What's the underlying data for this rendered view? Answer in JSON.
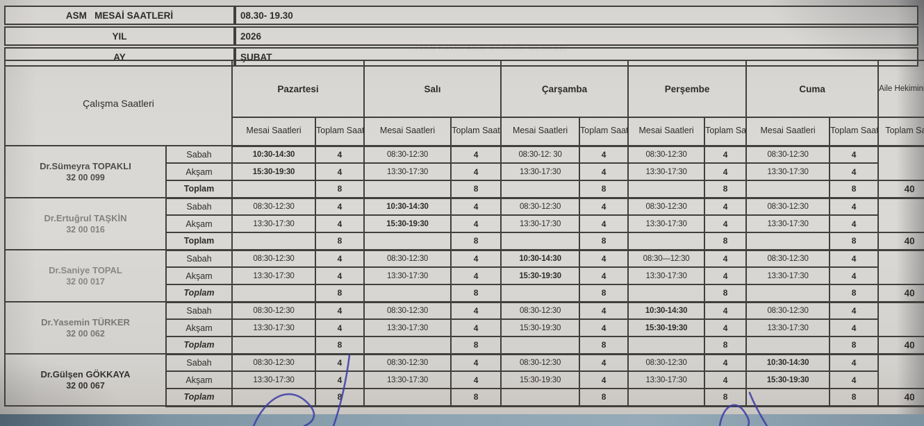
{
  "meta": {
    "rows": [
      {
        "label": "ASM   MESAİ SAATLERİ",
        "value": "08.30- 19.30"
      },
      {
        "label": "YIL",
        "value": "2026"
      },
      {
        "label": "AY",
        "value": "ŞUBAT"
      }
    ]
  },
  "schedule": {
    "corner_header": "Çalışma Saatleri",
    "days": [
      "Pazartesi",
      "Salı",
      "Çarşamba",
      "Perşembe",
      "Cuma"
    ],
    "mesai_header": "Mesai Saatleri",
    "toplam_header": "Toplam Saat",
    "family_col_header": "Aile Hekiminin Çalışma Saatleri",
    "family_col_subheader": "Toplam Saat",
    "period_labels": [
      "Sabah",
      "Akşam",
      "Toplam"
    ],
    "ghost_text": "İYAN FATİH AİLE SAĞLIĞI MERKEZİ",
    "doctors": [
      {
        "name": "Dr.Sümeyra TOPAKLI",
        "code": "32 00 099",
        "week_total": "40",
        "days": [
          {
            "sabah": "10:30-14:30",
            "sabah_em": true,
            "sabah_h": "4",
            "aksam": "15:30-19:30",
            "aksam_em": true,
            "aksam_h": "4",
            "toplam": "8"
          },
          {
            "sabah": "08:30-12:30",
            "sabah_h": "4",
            "aksam": "13:30-17:30",
            "aksam_h": "4",
            "toplam": "8"
          },
          {
            "sabah": "08:30-12: 30",
            "sabah_h": "4",
            "aksam": "13:30-17:30",
            "aksam_h": "4",
            "toplam": "8"
          },
          {
            "sabah": "08:30-12:30",
            "sabah_h": "4",
            "aksam": "13:30-17:30",
            "aksam_h": "4",
            "toplam": "8"
          },
          {
            "sabah": "08:30-12:30",
            "sabah_h": "4",
            "aksam": "13:30-17:30",
            "aksam_h": "4",
            "toplam": "8"
          }
        ]
      },
      {
        "name": "Dr.Ertuğrul TAŞKİN",
        "code": "32 00 016",
        "week_total": "40",
        "days": [
          {
            "sabah": "08:30-12:30",
            "sabah_h": "4",
            "aksam": "13:30-17:30",
            "aksam_h": "4",
            "toplam": "8"
          },
          {
            "sabah": "10:30-14:30",
            "sabah_em": true,
            "sabah_h": "4",
            "aksam": "15:30-19:30",
            "aksam_em": true,
            "aksam_h": "4",
            "toplam": "8"
          },
          {
            "sabah": "08:30-12:30",
            "sabah_h": "4",
            "aksam": "13:30-17:30",
            "aksam_h": "4",
            "toplam": "8"
          },
          {
            "sabah": "08:30-12:30",
            "sabah_h": "4",
            "aksam": "13:30-17:30",
            "aksam_h": "4",
            "toplam": "8"
          },
          {
            "sabah": "08:30-12:30",
            "sabah_h": "4",
            "aksam": "13:30-17:30",
            "aksam_h": "4",
            "toplam": "8"
          }
        ]
      },
      {
        "name": "Dr.Saniye TOPAL",
        "code": "32 00 017",
        "week_total": "40",
        "days": [
          {
            "sabah": "08:30-12:30",
            "sabah_h": "4",
            "aksam": "13:30-17:30",
            "aksam_h": "4",
            "toplam": "8"
          },
          {
            "sabah": "08:30-12:30",
            "sabah_h": "4",
            "aksam": "13:30-17:30",
            "aksam_h": "4",
            "toplam": "8"
          },
          {
            "sabah": "10:30-14:30",
            "sabah_em": true,
            "sabah_h": "4",
            "aksam": "15:30-19:30",
            "aksam_em": true,
            "aksam_h": "4",
            "toplam": "8"
          },
          {
            "sabah": "08:30—12:30",
            "sabah_h": "4",
            "aksam": "13:30-17:30",
            "aksam_h": "4",
            "toplam": "8"
          },
          {
            "sabah": "08:30-12:30",
            "sabah_h": "4",
            "aksam": "13:30-17:30",
            "aksam_h": "4",
            "toplam": "8"
          }
        ]
      },
      {
        "name": "Dr.Yasemin TÜRKER",
        "code": "32 00 062",
        "week_total": "40",
        "days": [
          {
            "sabah": "08:30-12:30",
            "sabah_h": "4",
            "aksam": "13:30-17:30",
            "aksam_h": "4",
            "toplam": "8"
          },
          {
            "sabah": "08:30-12:30",
            "sabah_h": "4",
            "aksam": "13:30-17:30",
            "aksam_h": "4",
            "toplam": "8"
          },
          {
            "sabah": "08:30-12:30",
            "sabah_h": "4",
            "aksam": "15:30-19:30",
            "aksam_h": "4",
            "toplam": "8"
          },
          {
            "sabah": "10:30-14:30",
            "sabah_em": true,
            "sabah_h": "4",
            "aksam": "15:30-19:30",
            "aksam_em": true,
            "aksam_h": "4",
            "toplam": "8"
          },
          {
            "sabah": "08:30-12:30",
            "sabah_h": "4",
            "aksam": "13:30-17:30",
            "aksam_h": "4",
            "toplam": "8"
          }
        ]
      },
      {
        "name": "Dr.Gülşen GÖKKAYA",
        "code": "32 00 067",
        "week_total": "40",
        "days": [
          {
            "sabah": "08:30-12:30",
            "sabah_h": "4",
            "aksam": "13:30-17:30",
            "aksam_h": "4",
            "toplam": "8"
          },
          {
            "sabah": "08:30-12:30",
            "sabah_h": "4",
            "aksam": "13:30-17:30",
            "aksam_h": "4",
            "toplam": "8"
          },
          {
            "sabah": "08:30-12:30",
            "sabah_h": "4",
            "aksam": "15:30-19:30",
            "aksam_h": "4",
            "toplam": "8"
          },
          {
            "sabah": "08:30-12:30",
            "sabah_h": "4",
            "aksam": "13:30-17:30",
            "aksam_h": "4",
            "toplam": "8"
          },
          {
            "sabah": "10:30-14:30",
            "sabah_em": true,
            "sabah_h": "4",
            "aksam": "15:30-19:30",
            "aksam_em": true,
            "aksam_h": "4",
            "toplam": "8"
          }
        ]
      }
    ]
  },
  "colors": {
    "paper": "#d8d6d2",
    "desk": "#8ea4b2",
    "ink": "#2e2c29",
    "pen": "#3d3da6"
  }
}
